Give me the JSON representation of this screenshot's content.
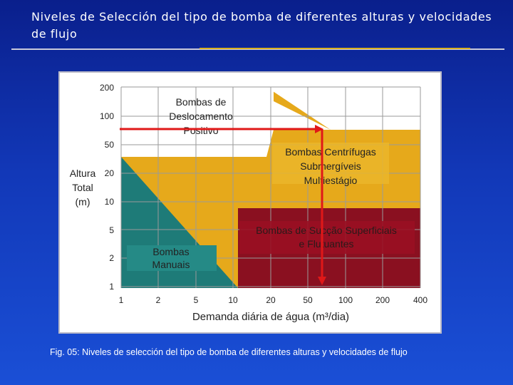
{
  "slide": {
    "title": "Niveles de Selección del tipo de bomba de diferentes alturas y velocidades de flujo",
    "caption": "Fig. 05: Niveles de selección del tipo de bomba de diferentes alturas y velocidades de flujo"
  },
  "colors": {
    "slide_background": "#1238b8",
    "positive_displacement": "#ffffff",
    "centrifugal": "#e6a91b",
    "surface_suction": "#8a1020",
    "manual": "#1e7b78",
    "grid": "#9a9a9a",
    "arrow": "#e01818"
  },
  "figure": {
    "y_axis_label": [
      "Altura",
      "Total",
      "(m)"
    ],
    "x_axis_label": "Demanda diária de água (m³/dia)",
    "y_ticks": [
      "200",
      "100",
      "50",
      "20",
      "10",
      "5",
      "2",
      "1"
    ],
    "x_ticks": [
      "1",
      "2",
      "5",
      "10",
      "20",
      "50",
      "100",
      "200",
      "400"
    ],
    "regions": {
      "positive_displacement": [
        "Bombas de",
        "Deslocamento",
        "Positivo"
      ],
      "centrifugal": [
        "Bombas Centrífugas",
        "Submergíveis",
        "Multiestágio"
      ],
      "surface_suction": [
        "Bombas de Sucção Superficiais",
        "e Flutuantes"
      ],
      "manual": [
        "Bombas",
        "Manuais"
      ]
    }
  }
}
